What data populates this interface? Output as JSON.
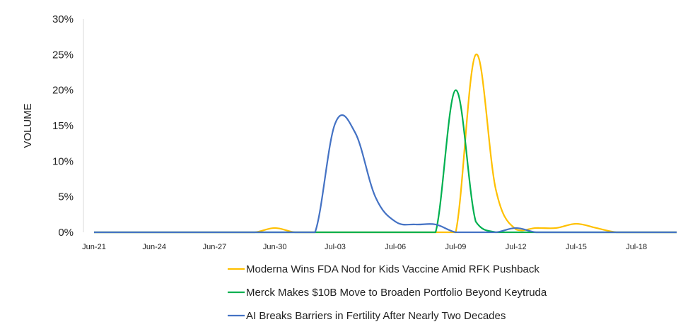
{
  "chart_data": {
    "type": "line",
    "title": "",
    "xlabel": "",
    "ylabel": "VOLUME",
    "ylim": [
      0,
      30
    ],
    "yticks": [
      "0%",
      "5%",
      "10%",
      "15%",
      "20%",
      "25%",
      "30%"
    ],
    "ytick_values": [
      0,
      5,
      10,
      15,
      20,
      25,
      30
    ],
    "grid": false,
    "legend_position": "bottom",
    "x": [
      "Jun-21",
      "Jun-22",
      "Jun-23",
      "Jun-24",
      "Jun-25",
      "Jun-26",
      "Jun-27",
      "Jun-28",
      "Jun-29",
      "Jun-30",
      "Jul-01",
      "Jul-02",
      "Jul-03",
      "Jul-04",
      "Jul-05",
      "Jul-06",
      "Jul-07",
      "Jul-08",
      "Jul-09",
      "Jul-10",
      "Jul-11",
      "Jul-12",
      "Jul-13",
      "Jul-14",
      "Jul-15",
      "Jul-16",
      "Jul-17",
      "Jul-18",
      "Jul-19",
      "Jul-20"
    ],
    "xticks": [
      "Jun-21",
      "Jun-24",
      "Jun-27",
      "Jun-30",
      "Jul-03",
      "Jul-06",
      "Jul-09",
      "Jul-12",
      "Jul-15",
      "Jul-18"
    ],
    "series": [
      {
        "name": "Moderna Wins FDA Nod for Kids Vaccine Amid RFK Pushback",
        "color": "#FFC000",
        "values": [
          0,
          0,
          0,
          0,
          0,
          0,
          0,
          0,
          0,
          0.6,
          0,
          0,
          0,
          0,
          0,
          0,
          0,
          0,
          0,
          25,
          6,
          0.4,
          0.6,
          0.6,
          1.2,
          0.6,
          0,
          0,
          0,
          0
        ]
      },
      {
        "name": "Merck Makes $10B Move to Broaden Portfolio Beyond Keytruda",
        "color": "#00B050",
        "values": [
          0,
          0,
          0,
          0,
          0,
          0,
          0,
          0,
          0,
          0,
          0,
          0,
          0,
          0,
          0,
          0,
          0,
          0,
          20,
          1.5,
          0,
          0,
          0,
          0,
          0,
          0,
          0,
          0,
          0,
          0
        ]
      },
      {
        "name": "AI Breaks Barriers in Fertility After Nearly Two Decades",
        "color": "#4472C4",
        "values": [
          0,
          0,
          0,
          0,
          0,
          0,
          0,
          0,
          0,
          0,
          0,
          0,
          15.3,
          14,
          5,
          1.5,
          1.1,
          1.1,
          0,
          0,
          0,
          0.6,
          0,
          0,
          0,
          0,
          0,
          0,
          0,
          0
        ]
      }
    ]
  }
}
